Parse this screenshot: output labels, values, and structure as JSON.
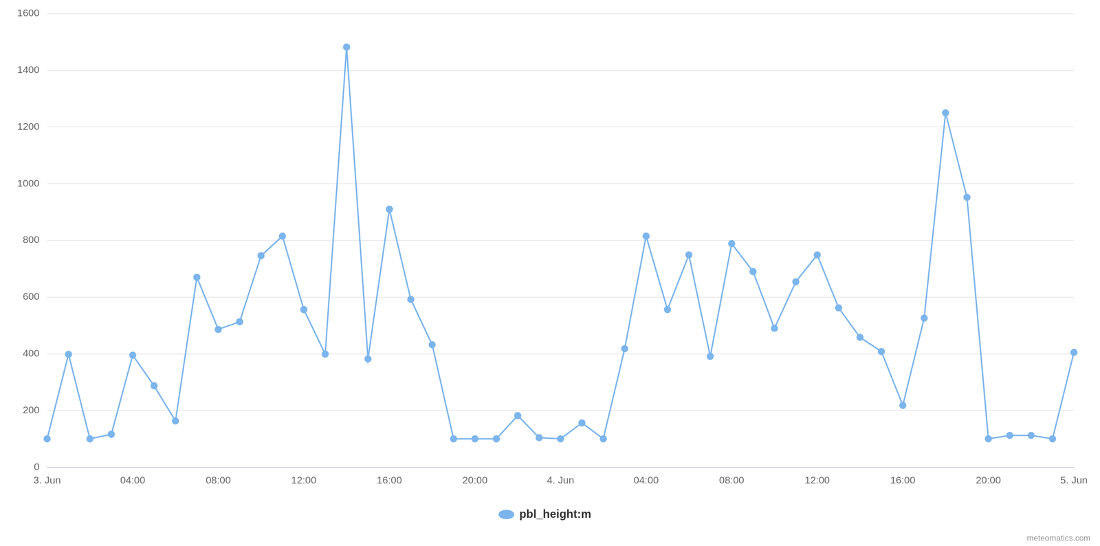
{
  "chart_data": {
    "type": "line",
    "categories": [
      "3. Jun",
      null,
      null,
      null,
      "04:00",
      null,
      null,
      null,
      "08:00",
      null,
      null,
      null,
      "12:00",
      null,
      null,
      null,
      "16:00",
      null,
      null,
      null,
      "20:00",
      null,
      null,
      null,
      "4. Jun",
      null,
      null,
      null,
      "04:00",
      null,
      null,
      null,
      "08:00",
      null,
      null,
      null,
      "12:00",
      null,
      null,
      null,
      "16:00",
      null,
      null,
      null,
      "20:00",
      null,
      null,
      null,
      "5. Jun"
    ],
    "series": [
      {
        "name": "pbl_height:m",
        "color": "#7cb5ec",
        "marker": "circle",
        "values": [
          100,
          398,
          100,
          116,
          395,
          287,
          163,
          670,
          486,
          513,
          746,
          815,
          556,
          399,
          1482,
          382,
          910,
          592,
          432,
          100,
          100,
          100,
          182,
          104,
          100,
          156,
          100,
          418,
          815,
          556,
          749,
          391,
          789,
          690,
          490,
          654,
          749,
          562,
          458,
          408,
          218,
          526,
          1250,
          952,
          100,
          112,
          112,
          100,
          405
        ]
      }
    ],
    "ylim": [
      0,
      1600
    ],
    "yticks": [
      0,
      200,
      400,
      600,
      800,
      1000,
      1200,
      1400,
      1600
    ],
    "grid": true,
    "legend": "bottom",
    "annotations": [
      "meteomatics.com"
    ]
  }
}
